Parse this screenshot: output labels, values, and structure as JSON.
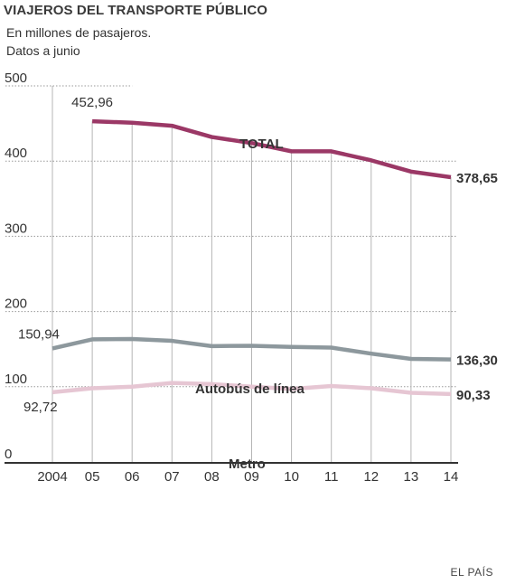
{
  "header": {
    "title": "VIAJEROS DEL TRANSPORTE PÚBLICO",
    "subtitle_line1": "En millones de pasajeros.",
    "subtitle_line2": "Datos a junio"
  },
  "source": "EL PAÍS",
  "chart_data": {
    "type": "line",
    "categories": [
      "2004",
      "05",
      "06",
      "07",
      "08",
      "09",
      "10",
      "11",
      "12",
      "13",
      "14"
    ],
    "ylim": [
      0,
      500
    ],
    "yticks": [
      "0",
      "100",
      "200",
      "300",
      "400",
      "500"
    ],
    "grid": "dotted horizontal and solid vertical",
    "series": [
      {
        "name": "TOTAL",
        "color": "#9b3866",
        "values": [
          null,
          452.96,
          451,
          447,
          432,
          424,
          413,
          413,
          401,
          386,
          378.65
        ],
        "start_label": "452,96",
        "end_label": "378,65"
      },
      {
        "name": "Autobús de línea",
        "color": "#8d989d",
        "values": [
          150.94,
          163,
          163.5,
          161,
          154,
          154.5,
          153,
          152,
          144,
          137,
          136.3
        ],
        "start_label": "150,94",
        "end_label": "136,30"
      },
      {
        "name": "Metro",
        "color": "#e6c6d3",
        "values": [
          92.72,
          98,
          100,
          105,
          103.5,
          100,
          97,
          101,
          98,
          92,
          90.33
        ],
        "start_label": "92,72",
        "end_label": "90,33"
      }
    ]
  }
}
